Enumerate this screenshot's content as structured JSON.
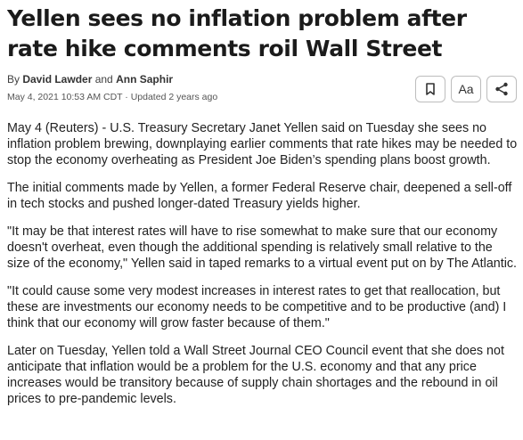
{
  "article": {
    "headline": "Yellen sees no inflation problem after rate hike comments roil Wall Street",
    "byline_prefix": "By ",
    "author1": "David Lawder",
    "byline_and": " and ",
    "author2": "Ann Saphir",
    "dateline": "May 4, 2021 10:53 AM CDT · Updated 2 years ago",
    "paragraphs": [
      "May 4 (Reuters) - U.S. Treasury Secretary Janet Yellen said on Tuesday she sees no inflation problem brewing, downplaying earlier comments that rate hikes may be needed to stop the economy overheating as President Joe Biden’s spending plans boost growth.",
      "The initial comments made by Yellen, a former Federal Reserve chair, deepened a sell-off in tech stocks and pushed longer-dated Treasury yields higher.",
      "\"It may be that interest rates will have to rise somewhat to make sure that our economy doesn't overheat, even though the additional spending is relatively small relative to the size of the economy,\" Yellen said in taped remarks to a virtual event put on by The Atlantic.",
      "\"It could cause some very modest increases in interest rates to get that reallocation, but these are investments our economy needs to be competitive and to be productive (and) I think that our economy will grow faster because of them.\"",
      "Later on Tuesday, Yellen told a Wall Street Journal CEO Council event that she does not anticipate that inflation would be a problem for the U.S. economy and that any price increases would be transitory because of supply chain shortages and the rebound in oil prices to pre-pandemic levels."
    ]
  },
  "toolbar": {
    "bookmark_icon": "bookmark-icon",
    "text_size_label": "Aa",
    "share_icon": "share-icon"
  }
}
